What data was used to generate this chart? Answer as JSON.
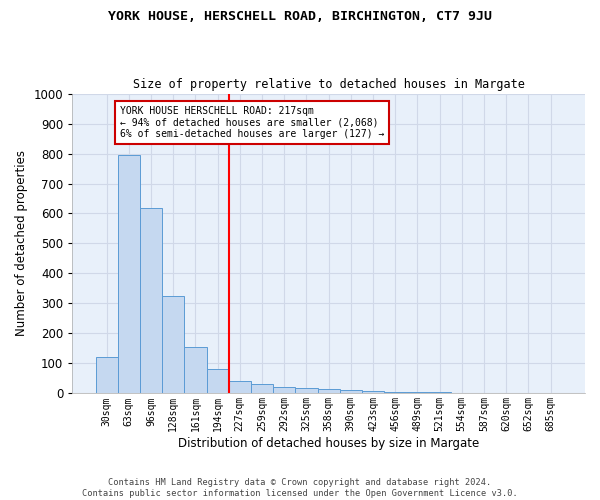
{
  "title": "YORK HOUSE, HERSCHELL ROAD, BIRCHINGTON, CT7 9JU",
  "subtitle": "Size of property relative to detached houses in Margate",
  "xlabel": "Distribution of detached houses by size in Margate",
  "ylabel": "Number of detached properties",
  "footer_line1": "Contains HM Land Registry data © Crown copyright and database right 2024.",
  "footer_line2": "Contains public sector information licensed under the Open Government Licence v3.0.",
  "bar_labels": [
    "30sqm",
    "63sqm",
    "96sqm",
    "128sqm",
    "161sqm",
    "194sqm",
    "227sqm",
    "259sqm",
    "292sqm",
    "325sqm",
    "358sqm",
    "390sqm",
    "423sqm",
    "456sqm",
    "489sqm",
    "521sqm",
    "554sqm",
    "587sqm",
    "620sqm",
    "652sqm",
    "685sqm"
  ],
  "bar_heights": [
    120,
    795,
    620,
    325,
    155,
    80,
    40,
    30,
    20,
    18,
    15,
    10,
    8,
    6,
    5,
    4,
    3,
    2,
    2,
    2,
    2
  ],
  "bar_color": "#c5d8f0",
  "bar_edge_color": "#5b9bd5",
  "background_color": "#e8f0fa",
  "grid_color": "#d0d8e8",
  "red_line_x": 5.5,
  "annotation_text": "YORK HOUSE HERSCHELL ROAD: 217sqm\n← 94% of detached houses are smaller (2,068)\n6% of semi-detached houses are larger (127) →",
  "annotation_box_edge": "#cc0000",
  "ylim": [
    0,
    1000
  ],
  "yticks": [
    0,
    100,
    200,
    300,
    400,
    500,
    600,
    700,
    800,
    900,
    1000
  ]
}
